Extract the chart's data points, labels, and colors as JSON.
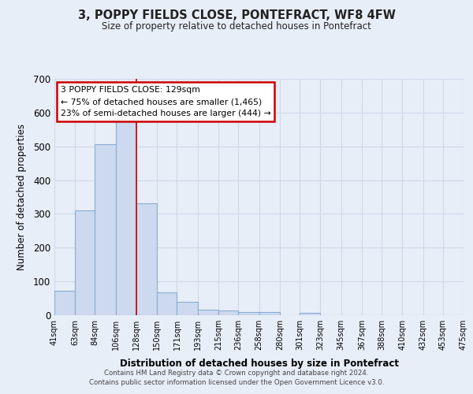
{
  "title": "3, POPPY FIELDS CLOSE, PONTEFRACT, WF8 4FW",
  "subtitle": "Size of property relative to detached houses in Pontefract",
  "xlabel": "Distribution of detached houses by size in Pontefract",
  "ylabel": "Number of detached properties",
  "bar_color": "#ccd9ee",
  "bar_edge_color": "#8aadd4",
  "background_color": "#e8eef8",
  "grid_color": "#d0d8e8",
  "bin_labels": [
    "41sqm",
    "63sqm",
    "84sqm",
    "106sqm",
    "128sqm",
    "150sqm",
    "171sqm",
    "193sqm",
    "215sqm",
    "236sqm",
    "258sqm",
    "280sqm",
    "301sqm",
    "323sqm",
    "345sqm",
    "367sqm",
    "388sqm",
    "410sqm",
    "432sqm",
    "453sqm",
    "475sqm"
  ],
  "bin_edges": [
    41,
    63,
    84,
    106,
    128,
    150,
    171,
    193,
    215,
    236,
    258,
    280,
    301,
    323,
    345,
    367,
    388,
    410,
    432,
    453,
    475
  ],
  "bar_heights": [
    72,
    311,
    507,
    576,
    331,
    68,
    40,
    17,
    14,
    10,
    10,
    0,
    7,
    0,
    0,
    0,
    0,
    0,
    0,
    0
  ],
  "ylim": [
    0,
    700
  ],
  "yticks": [
    0,
    100,
    200,
    300,
    400,
    500,
    600,
    700
  ],
  "property_label": "3 POPPY FIELDS CLOSE: 129sqm",
  "annotation_line1": "← 75% of detached houses are smaller (1,465)",
  "annotation_line2": "23% of semi-detached houses are larger (444) →",
  "annotation_box_color": "#ffffff",
  "annotation_box_edge": "#cc0000",
  "property_line_color": "#cc0000",
  "footer1": "Contains HM Land Registry data © Crown copyright and database right 2024.",
  "footer2": "Contains public sector information licensed under the Open Government Licence v3.0."
}
